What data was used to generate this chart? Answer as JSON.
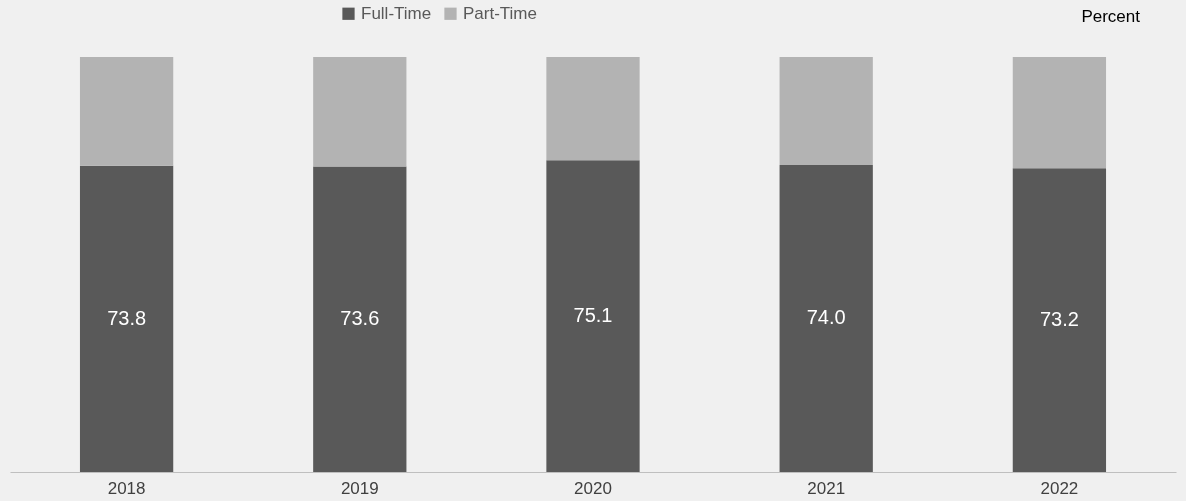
{
  "chart_data": {
    "type": "bar",
    "stacked": true,
    "categories": [
      "2018",
      "2019",
      "2020",
      "2021",
      "2022"
    ],
    "series": [
      {
        "name": "Full-Time",
        "color": "#595959",
        "values": [
          73.8,
          73.6,
          75.1,
          74.0,
          73.2
        ],
        "value_labels": [
          "73.8",
          "73.6",
          "75.1",
          "74.0",
          "73.2"
        ]
      },
      {
        "name": "Part-Time",
        "color": "#b3b3b3",
        "values": [
          26.2,
          26.4,
          24.9,
          26.0,
          26.8
        ]
      }
    ],
    "ylim": [
      0,
      100
    ],
    "tick_labels": "x",
    "legend": "top",
    "grid": false,
    "annotations": [
      "Percent"
    ]
  }
}
